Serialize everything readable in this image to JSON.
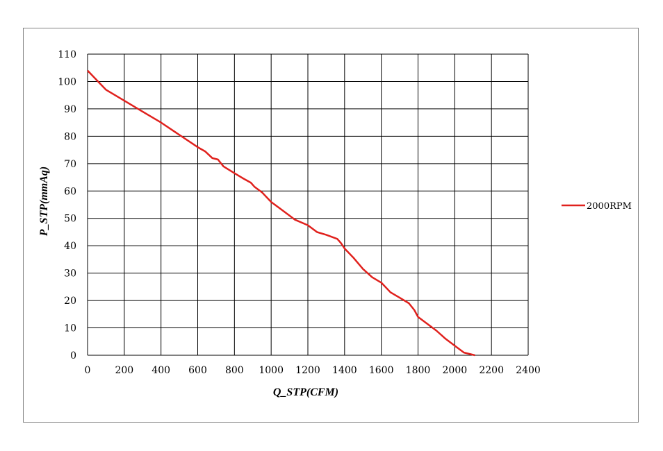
{
  "chart_data": {
    "type": "line",
    "xlabel": "Q_STP(CFM)",
    "ylabel": "P_STP(mmAq)",
    "xlim": [
      0,
      2400
    ],
    "ylim": [
      0,
      110
    ],
    "xticks": [
      0,
      200,
      400,
      600,
      800,
      1000,
      1200,
      1400,
      1600,
      1800,
      2000,
      2200,
      2400
    ],
    "yticks": [
      0,
      10,
      20,
      30,
      40,
      50,
      60,
      70,
      80,
      90,
      100,
      110
    ],
    "grid": true,
    "legend_position": "right",
    "series": [
      {
        "name": "2000RPM",
        "color": "#e0211d",
        "points": [
          [
            0,
            104
          ],
          [
            50,
            100.5
          ],
          [
            100,
            97
          ],
          [
            200,
            93
          ],
          [
            300,
            89
          ],
          [
            400,
            85
          ],
          [
            500,
            80.5
          ],
          [
            600,
            76
          ],
          [
            640,
            74.5
          ],
          [
            680,
            72
          ],
          [
            710,
            71.5
          ],
          [
            740,
            69
          ],
          [
            800,
            66.5
          ],
          [
            850,
            64.5
          ],
          [
            890,
            63
          ],
          [
            910,
            61.5
          ],
          [
            950,
            59.5
          ],
          [
            1000,
            56
          ],
          [
            1050,
            53.5
          ],
          [
            1100,
            51
          ],
          [
            1130,
            49.5
          ],
          [
            1200,
            47.5
          ],
          [
            1250,
            45
          ],
          [
            1300,
            44
          ],
          [
            1360,
            42.5
          ],
          [
            1380,
            41
          ],
          [
            1400,
            39
          ],
          [
            1450,
            35.5
          ],
          [
            1500,
            31.5
          ],
          [
            1550,
            28.5
          ],
          [
            1600,
            26.5
          ],
          [
            1650,
            23
          ],
          [
            1700,
            21
          ],
          [
            1750,
            19
          ],
          [
            1780,
            16.5
          ],
          [
            1800,
            14
          ],
          [
            1850,
            11.5
          ],
          [
            1900,
            9
          ],
          [
            1950,
            6
          ],
          [
            2000,
            3.5
          ],
          [
            2050,
            1
          ],
          [
            2110,
            0
          ]
        ]
      }
    ]
  }
}
